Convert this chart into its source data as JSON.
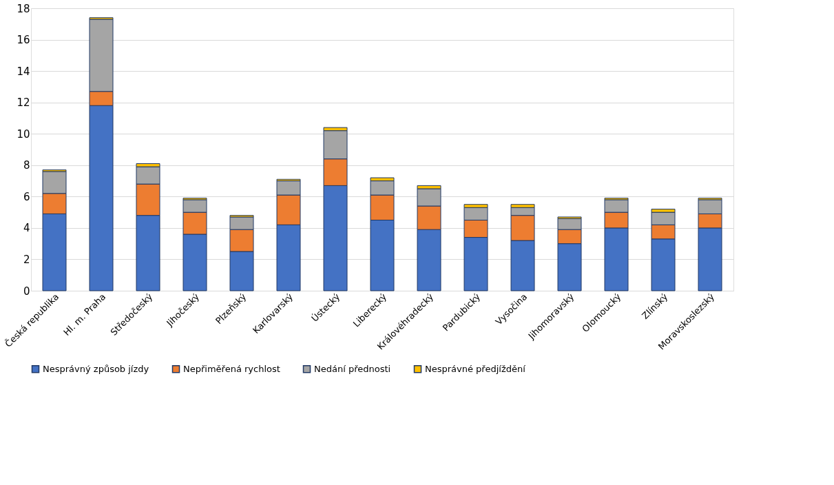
{
  "chart_data": {
    "type": "bar",
    "stacked": true,
    "categories": [
      "Česká republika",
      "Hl. m. Praha",
      "Středočeský",
      "Jihočeský",
      "Plzeňský",
      "Karlovarský",
      "Ústecký",
      "Liberecký",
      "Královéhradecký",
      "Pardubický",
      "Vysočina",
      "Jihomoravský",
      "Olomoucký",
      "Zlínský",
      "Moravskoslezský"
    ],
    "series": [
      {
        "name": "Nesprávný způsob jízdy",
        "color": "#4472c4",
        "values": [
          4.9,
          11.8,
          4.8,
          3.6,
          2.5,
          4.2,
          6.7,
          4.5,
          3.9,
          3.4,
          3.2,
          3.0,
          4.0,
          3.3,
          4.0
        ]
      },
      {
        "name": "Nepřiměřená rychlost",
        "color": "#ed7d31",
        "values": [
          1.3,
          0.9,
          2.0,
          1.4,
          1.4,
          1.9,
          1.7,
          1.6,
          1.5,
          1.1,
          1.6,
          0.9,
          1.0,
          0.9,
          0.9
        ]
      },
      {
        "name": "Nedání přednosti",
        "color": "#a5a5a5",
        "values": [
          1.4,
          4.6,
          1.1,
          0.8,
          0.8,
          0.9,
          1.8,
          0.9,
          1.1,
          0.8,
          0.5,
          0.7,
          0.8,
          0.8,
          0.9
        ]
      },
      {
        "name": "Nesprávné předjíždění",
        "color": "#ffc000",
        "values": [
          0.1,
          0.1,
          0.2,
          0.1,
          0.1,
          0.1,
          0.2,
          0.2,
          0.2,
          0.2,
          0.2,
          0.1,
          0.1,
          0.2,
          0.1
        ]
      }
    ],
    "ylim": [
      0,
      18
    ],
    "yticks": [
      0,
      2,
      4,
      6,
      8,
      10,
      12,
      14,
      16,
      18
    ],
    "grid": "y",
    "legend": "bottom"
  }
}
